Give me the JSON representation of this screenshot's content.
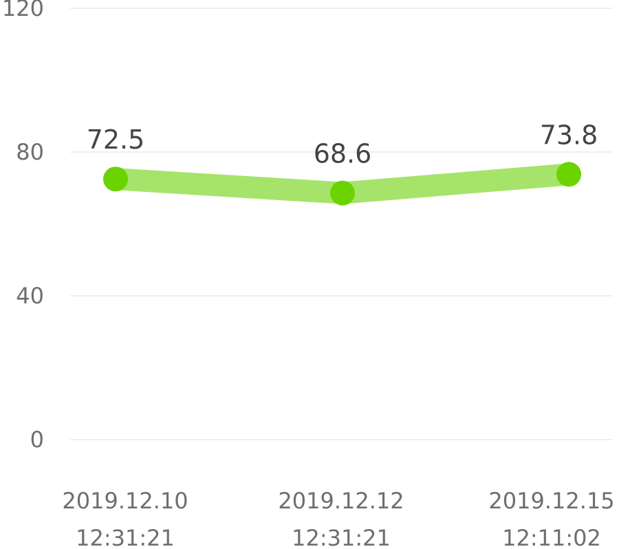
{
  "chart_data": {
    "type": "line",
    "x": [
      "2019.12.10 12:31:21",
      "2019.12.12 12:31:21",
      "2019.12.15 12:11:02"
    ],
    "x_lines": [
      [
        "2019.12.10",
        "12:31:21"
      ],
      [
        "2019.12.12",
        "12:31:21"
      ],
      [
        "2019.12.15",
        "12:11:02"
      ]
    ],
    "series": [
      {
        "values": [
          72.5,
          68.6,
          73.8
        ],
        "labels": [
          "72.5",
          "68.6",
          "73.8"
        ]
      }
    ],
    "yticks": [
      "120",
      "80",
      "40",
      "0"
    ],
    "ytick_values": [
      120,
      80,
      40,
      0
    ],
    "ylim": [
      0,
      120
    ],
    "grid": true,
    "line_color": "#a6e36a",
    "marker_color": "#6bd400",
    "grid_color": "#efefef"
  }
}
